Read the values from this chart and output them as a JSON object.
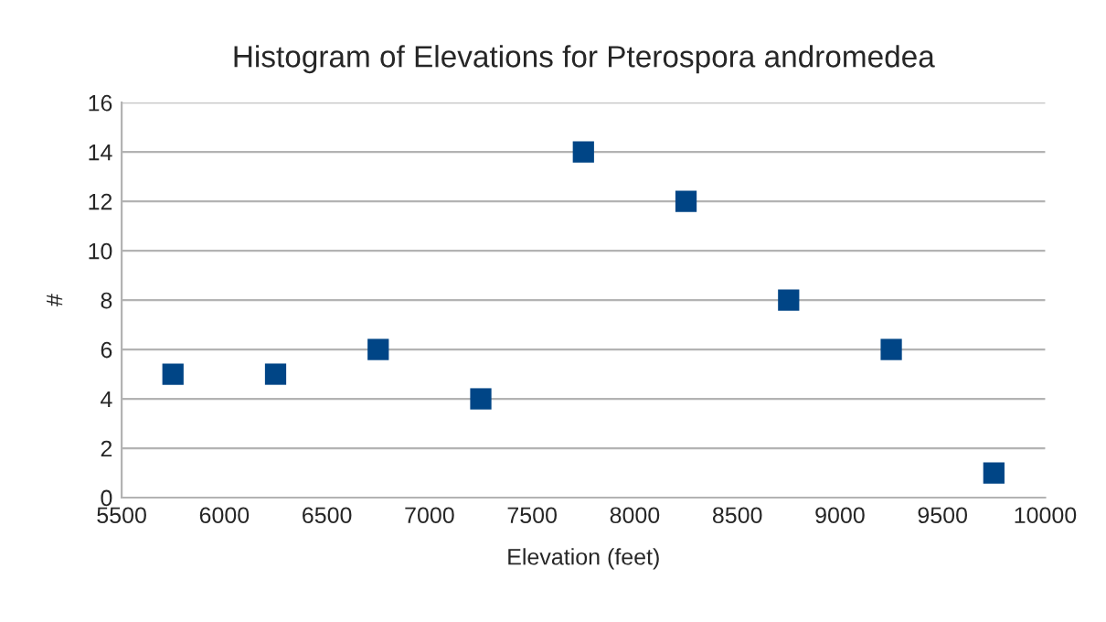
{
  "chart_data": {
    "type": "scatter",
    "title": "Histogram of Elevations for Pterospora andromedea",
    "xlabel": "Elevation (feet)",
    "ylabel": "#",
    "x": [
      5750,
      6250,
      6750,
      7250,
      7750,
      8250,
      8750,
      9250,
      9750
    ],
    "series": [
      {
        "color": "#004586",
        "values": [
          5,
          5,
          6,
          4,
          14,
          12,
          8,
          6,
          1
        ]
      }
    ],
    "xlim": [
      5500,
      10000
    ],
    "xticks": [
      5500,
      6000,
      6500,
      7000,
      7500,
      8000,
      8500,
      9000,
      9500,
      10000
    ],
    "ylim": [
      0,
      16
    ],
    "yticks": [
      0,
      2,
      4,
      6,
      8,
      10,
      12,
      14,
      16
    ],
    "grid": "y",
    "marker": "square"
  }
}
